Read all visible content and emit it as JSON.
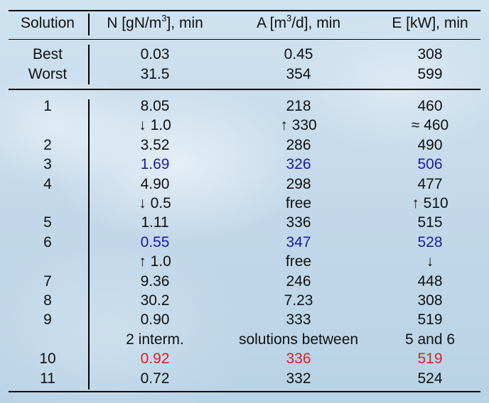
{
  "header": {
    "solution": "Solution",
    "n_pre": "N [gN/m",
    "n_sup": "3",
    "n_post": "], min",
    "a_pre": "A [m",
    "a_sup": "3",
    "a_post": "/d], min",
    "e": "E [kW], min"
  },
  "bounds": [
    {
      "label": "Best",
      "n": "0.03",
      "a": "0.45",
      "e": "308"
    },
    {
      "label": "Worst",
      "n": "31.5",
      "a": "354",
      "e": "599"
    }
  ],
  "rows": [
    {
      "label": "1",
      "n": "8.05",
      "a": "218",
      "e": "460",
      "color": ""
    },
    {
      "label": "",
      "n": "↓ 1.0",
      "a": "↑ 330",
      "e": "≈ 460",
      "color": ""
    },
    {
      "label": "2",
      "n": "3.52",
      "a": "286",
      "e": "490",
      "color": ""
    },
    {
      "label": "3",
      "n": "1.69",
      "a": "326",
      "e": "506",
      "color": "blue"
    },
    {
      "label": "4",
      "n": "4.90",
      "a": "298",
      "e": "477",
      "color": ""
    },
    {
      "label": "",
      "n": "↓ 0.5",
      "a": "free",
      "e": "↑ 510",
      "color": ""
    },
    {
      "label": "5",
      "n": "1.11",
      "a": "336",
      "e": "515",
      "color": ""
    },
    {
      "label": "6",
      "n": "0.55",
      "a": "347",
      "e": "528",
      "color": "blue"
    },
    {
      "label": "",
      "n": "↑ 1.0",
      "a": "free",
      "e": "↓",
      "color": ""
    },
    {
      "label": "7",
      "n": "9.36",
      "a": "246",
      "e": "448",
      "color": ""
    },
    {
      "label": "8",
      "n": "30.2",
      "a": "7.23",
      "e": "308",
      "color": ""
    },
    {
      "label": "9",
      "n": "0.90",
      "a": "333",
      "e": "519",
      "color": ""
    },
    {
      "label": "",
      "n": "2 interm.",
      "a": "solutions between",
      "e": "5 and 6",
      "color": ""
    },
    {
      "label": "10",
      "n": "0.92",
      "a": "336",
      "e": "519",
      "color": "red"
    },
    {
      "label": "11",
      "n": "0.72",
      "a": "332",
      "e": "524",
      "color": ""
    }
  ],
  "colors": {
    "blue": "#1a1aa8",
    "red": "#e02020",
    "background": "#c6dcec"
  }
}
